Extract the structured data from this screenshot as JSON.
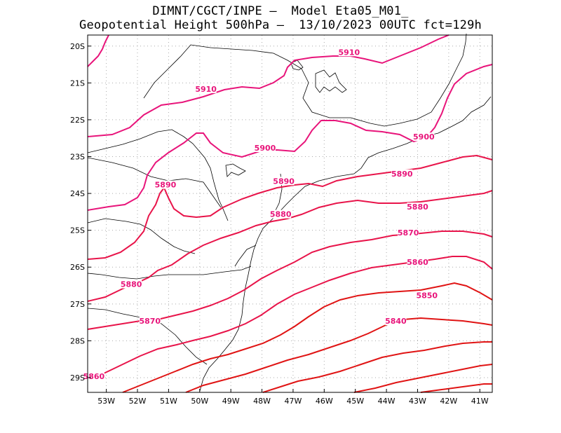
{
  "title": {
    "line1": "DIMNT/CGCT/INPE –  Model Eta05_M01_",
    "line2": "Geopotential Height 500hPa –  13/10/2023 00UTC fct=129h"
  },
  "axes": {
    "lat_labels": [
      "20S",
      "21S",
      "22S",
      "23S",
      "24S",
      "25S",
      "26S",
      "27S",
      "28S",
      "29S"
    ],
    "lon_labels": [
      "53W",
      "52W",
      "51W",
      "50W",
      "49W",
      "48W",
      "47W",
      "46W",
      "45W",
      "44W",
      "43W",
      "42W",
      "41W"
    ],
    "lat_range": [
      -29.4,
      -19.7
    ],
    "lon_range": [
      -53.6,
      -40.6
    ]
  },
  "contour_labels": [
    {
      "text": "5910",
      "lon": -45.2,
      "lat": -20.2
    },
    {
      "text": "5910",
      "lon": -49.8,
      "lat": -21.2
    },
    {
      "text": "5900",
      "lon": -47.9,
      "lat": -22.8
    },
    {
      "text": "5900",
      "lon": -42.8,
      "lat": -22.5
    },
    {
      "text": "5890",
      "lon": -51.1,
      "lat": -23.8
    },
    {
      "text": "5890",
      "lon": -47.3,
      "lat": -23.7
    },
    {
      "text": "5890",
      "lon": -43.5,
      "lat": -23.5
    },
    {
      "text": "5880",
      "lon": -47.4,
      "lat": -24.6
    },
    {
      "text": "5880",
      "lon": -43.0,
      "lat": -24.4
    },
    {
      "text": "5880",
      "lon": -52.2,
      "lat": -26.5
    },
    {
      "text": "5870",
      "lon": -43.3,
      "lat": -25.1
    },
    {
      "text": "5870",
      "lon": -51.6,
      "lat": -27.5
    },
    {
      "text": "5860",
      "lon": -43.0,
      "lat": -25.9
    },
    {
      "text": "5860",
      "lon": -53.4,
      "lat": -29.0
    },
    {
      "text": "5850",
      "lon": -42.7,
      "lat": -26.8
    },
    {
      "text": "5840",
      "lon": -43.7,
      "lat": -27.5
    }
  ],
  "colors": {
    "contour_high": "#e8147a",
    "contour_mid": "#e8144a",
    "contour_low": "#e01414",
    "grid": "#aaaaaa",
    "coast": "#000000"
  }
}
